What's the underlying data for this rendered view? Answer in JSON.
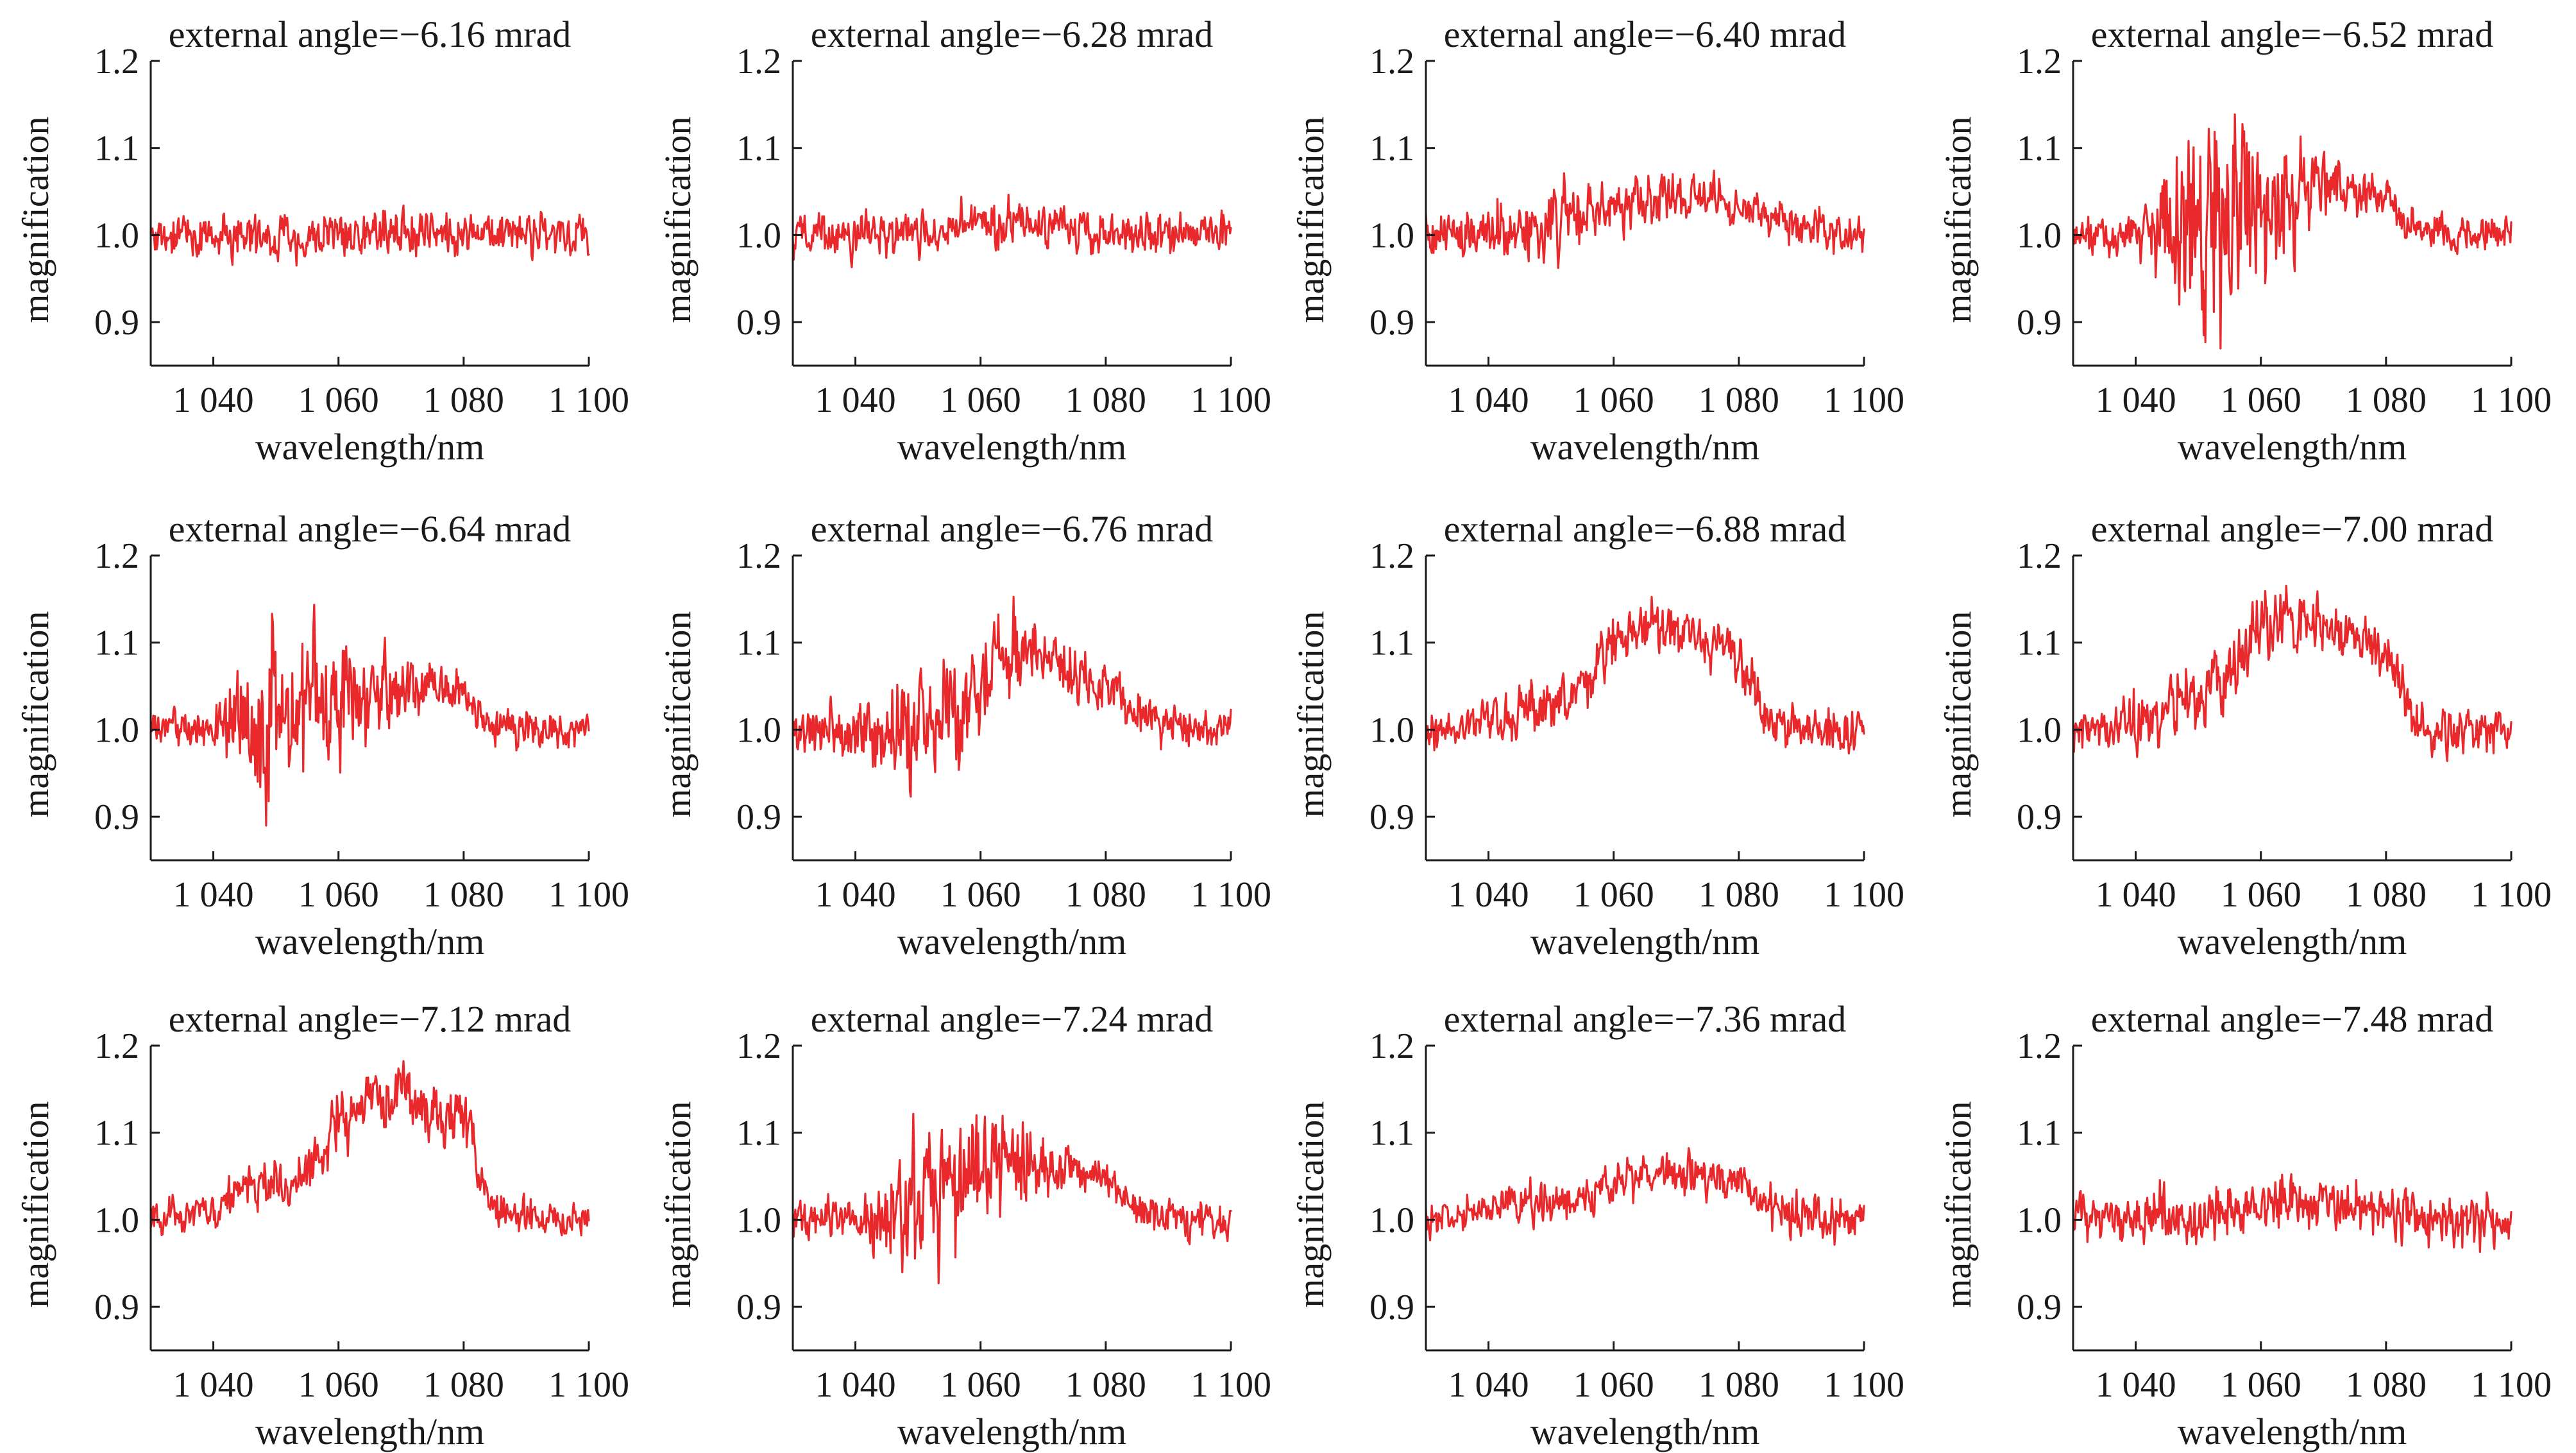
{
  "figure": {
    "line_color": "#e8282b",
    "axis_color": "#1a1a1a"
  },
  "chart_data": [
    {
      "type": "line",
      "title": "external angle=−6.16 mrad",
      "xlabel": "wavelength/nm",
      "ylabel": "magnification",
      "xlim": [
        1030,
        1100
      ],
      "ylim": [
        0.85,
        1.2
      ],
      "xticks": [
        1040,
        1060,
        1080,
        1100
      ],
      "xtick_labels": [
        "1 040",
        "1 060",
        "1 080",
        "1 100"
      ],
      "yticks": [
        0.9,
        1.0,
        1.1,
        1.2
      ],
      "ytick_labels": [
        "0.9",
        "1.0",
        "1.1",
        "1.2"
      ],
      "grid": false,
      "series": [
        {
          "x": [
            1030,
            1035,
            1040,
            1045,
            1050,
            1055,
            1060,
            1065,
            1070,
            1075,
            1080,
            1085,
            1090,
            1095,
            1100
          ],
          "y": [
            1.0,
            1.0,
            1.0,
            1.0,
            1.0,
            1.0,
            1.0,
            1.0,
            1.0,
            1.0,
            1.0,
            1.0,
            1.0,
            1.0,
            1.0
          ],
          "noise": [
            0.014,
            0.014,
            0.014,
            0.014,
            0.014,
            0.014,
            0.014,
            0.014,
            0.014,
            0.014,
            0.014,
            0.014,
            0.014,
            0.014,
            0.014
          ]
        }
      ]
    },
    {
      "type": "line",
      "title": "external angle=−6.28 mrad",
      "xlabel": "wavelength/nm",
      "ylabel": "magnification",
      "xlim": [
        1030,
        1100
      ],
      "ylim": [
        0.85,
        1.2
      ],
      "xticks": [
        1040,
        1060,
        1080,
        1100
      ],
      "xtick_labels": [
        "1 040",
        "1 060",
        "1 080",
        "1 100"
      ],
      "yticks": [
        0.9,
        1.0,
        1.1,
        1.2
      ],
      "ytick_labels": [
        "0.9",
        "1.0",
        "1.1",
        "1.2"
      ],
      "grid": false,
      "series": [
        {
          "x": [
            1030,
            1035,
            1040,
            1045,
            1050,
            1055,
            1060,
            1065,
            1070,
            1075,
            1080,
            1085,
            1090,
            1095,
            1100
          ],
          "y": [
            1.0,
            1.0,
            1.0,
            1.0,
            1.0,
            1.005,
            1.01,
            1.01,
            1.01,
            1.005,
            1.005,
            1.0,
            1.0,
            1.0,
            1.0
          ],
          "noise": [
            0.014,
            0.014,
            0.014,
            0.015,
            0.015,
            0.015,
            0.016,
            0.015,
            0.015,
            0.015,
            0.014,
            0.014,
            0.014,
            0.014,
            0.014
          ]
        }
      ]
    },
    {
      "type": "line",
      "title": "external angle=−6.40 mrad",
      "xlabel": "wavelength/nm",
      "ylabel": "magnification",
      "xlim": [
        1030,
        1100
      ],
      "ylim": [
        0.85,
        1.2
      ],
      "xticks": [
        1040,
        1060,
        1080,
        1100
      ],
      "xtick_labels": [
        "1 040",
        "1 060",
        "1 080",
        "1 100"
      ],
      "yticks": [
        0.9,
        1.0,
        1.1,
        1.2
      ],
      "ytick_labels": [
        "0.9",
        "1.0",
        "1.1",
        "1.2"
      ],
      "grid": false,
      "series": [
        {
          "x": [
            1030,
            1035,
            1040,
            1045,
            1050,
            1055,
            1060,
            1065,
            1070,
            1075,
            1080,
            1085,
            1090,
            1095,
            1100
          ],
          "y": [
            1.0,
            1.0,
            1.0,
            1.005,
            1.015,
            1.025,
            1.035,
            1.045,
            1.045,
            1.04,
            1.03,
            1.02,
            1.01,
            1.0,
            1.0
          ],
          "noise": [
            0.015,
            0.015,
            0.02,
            0.022,
            0.022,
            0.02,
            0.018,
            0.016,
            0.015,
            0.015,
            0.014,
            0.014,
            0.013,
            0.013,
            0.013
          ]
        }
      ]
    },
    {
      "type": "line",
      "title": "external angle=−6.52 mrad",
      "xlabel": "wavelength/nm",
      "ylabel": "magnification",
      "xlim": [
        1030,
        1100
      ],
      "ylim": [
        0.85,
        1.2
      ],
      "xticks": [
        1040,
        1060,
        1080,
        1100
      ],
      "xtick_labels": [
        "1 040",
        "1 060",
        "1 080",
        "1 100"
      ],
      "yticks": [
        0.9,
        1.0,
        1.1,
        1.2
      ],
      "ytick_labels": [
        "0.9",
        "1.0",
        "1.1",
        "1.2"
      ],
      "grid": false,
      "series": [
        {
          "x": [
            1030,
            1035,
            1040,
            1045,
            1050,
            1055,
            1060,
            1065,
            1070,
            1075,
            1080,
            1085,
            1090,
            1095,
            1100
          ],
          "y": [
            1.0,
            1.0,
            1.0,
            1.005,
            1.02,
            1.03,
            1.04,
            1.05,
            1.055,
            1.05,
            1.04,
            1.005,
            1.0,
            1.0,
            1.0
          ],
          "noise": [
            0.012,
            0.012,
            0.012,
            0.05,
            0.07,
            0.06,
            0.05,
            0.04,
            0.025,
            0.015,
            0.013,
            0.012,
            0.012,
            0.012,
            0.012
          ]
        }
      ]
    },
    {
      "type": "line",
      "title": "external angle=−6.64 mrad",
      "xlabel": "wavelength/nm",
      "ylabel": "magnification",
      "xlim": [
        1030,
        1100
      ],
      "ylim": [
        0.85,
        1.2
      ],
      "xticks": [
        1040,
        1060,
        1080,
        1100
      ],
      "xtick_labels": [
        "1 040",
        "1 060",
        "1 080",
        "1 100"
      ],
      "yticks": [
        0.9,
        1.0,
        1.1,
        1.2
      ],
      "ytick_labels": [
        "0.9",
        "1.0",
        "1.1",
        "1.2"
      ],
      "grid": false,
      "series": [
        {
          "x": [
            1030,
            1035,
            1040,
            1045,
            1050,
            1055,
            1060,
            1065,
            1070,
            1075,
            1080,
            1085,
            1090,
            1095,
            1100
          ],
          "y": [
            1.0,
            1.0,
            1.0,
            1.01,
            1.02,
            1.02,
            1.04,
            1.05,
            1.05,
            1.045,
            1.04,
            1.005,
            1.0,
            1.0,
            1.0
          ],
          "noise": [
            0.012,
            0.012,
            0.012,
            0.05,
            0.06,
            0.06,
            0.045,
            0.03,
            0.02,
            0.015,
            0.014,
            0.012,
            0.012,
            0.012,
            0.012
          ]
        }
      ]
    },
    {
      "type": "line",
      "title": "external angle=−6.76 mrad",
      "xlabel": "wavelength/nm",
      "ylabel": "magnification",
      "xlim": [
        1030,
        1100
      ],
      "ylim": [
        0.85,
        1.2
      ],
      "xticks": [
        1040,
        1060,
        1080,
        1100
      ],
      "xtick_labels": [
        "1 040",
        "1 060",
        "1 080",
        "1 100"
      ],
      "yticks": [
        0.9,
        1.0,
        1.1,
        1.2
      ],
      "ytick_labels": [
        "0.9",
        "1.0",
        "1.1",
        "1.2"
      ],
      "grid": false,
      "series": [
        {
          "x": [
            1030,
            1035,
            1040,
            1045,
            1050,
            1055,
            1060,
            1065,
            1070,
            1075,
            1080,
            1085,
            1090,
            1095,
            1100
          ],
          "y": [
            1.0,
            1.0,
            1.0,
            1.0,
            1.005,
            1.02,
            1.05,
            1.1,
            1.09,
            1.07,
            1.05,
            1.02,
            1.01,
            1.0,
            1.0
          ],
          "noise": [
            0.015,
            0.015,
            0.02,
            0.03,
            0.035,
            0.035,
            0.035,
            0.03,
            0.02,
            0.018,
            0.016,
            0.015,
            0.014,
            0.014,
            0.014
          ]
        }
      ]
    },
    {
      "type": "line",
      "title": "external angle=−6.88 mrad",
      "xlabel": "wavelength/nm",
      "ylabel": "magnification",
      "xlim": [
        1030,
        1100
      ],
      "ylim": [
        0.85,
        1.2
      ],
      "xticks": [
        1040,
        1060,
        1080,
        1100
      ],
      "xtick_labels": [
        "1 040",
        "1 060",
        "1 080",
        "1 100"
      ],
      "yticks": [
        0.9,
        1.0,
        1.1,
        1.2
      ],
      "ytick_labels": [
        "0.9",
        "1.0",
        "1.1",
        "1.2"
      ],
      "grid": false,
      "series": [
        {
          "x": [
            1030,
            1035,
            1040,
            1045,
            1050,
            1055,
            1060,
            1065,
            1070,
            1075,
            1080,
            1085,
            1090,
            1095,
            1100
          ],
          "y": [
            1.0,
            1.005,
            1.01,
            1.02,
            1.03,
            1.05,
            1.09,
            1.11,
            1.11,
            1.1,
            1.08,
            1.01,
            1.0,
            1.0,
            1.0
          ],
          "noise": [
            0.013,
            0.013,
            0.014,
            0.018,
            0.02,
            0.02,
            0.02,
            0.02,
            0.018,
            0.016,
            0.016,
            0.015,
            0.015,
            0.015,
            0.015
          ]
        }
      ]
    },
    {
      "type": "line",
      "title": "external angle=−7.00 mrad",
      "xlabel": "wavelength/nm",
      "ylabel": "magnification",
      "xlim": [
        1030,
        1100
      ],
      "ylim": [
        0.85,
        1.2
      ],
      "xticks": [
        1040,
        1060,
        1080,
        1100
      ],
      "xtick_labels": [
        "1 040",
        "1 060",
        "1 080",
        "1 100"
      ],
      "yticks": [
        0.9,
        1.0,
        1.1,
        1.2
      ],
      "ytick_labels": [
        "0.9",
        "1.0",
        "1.1",
        "1.2"
      ],
      "grid": false,
      "series": [
        {
          "x": [
            1030,
            1035,
            1040,
            1045,
            1050,
            1055,
            1060,
            1065,
            1070,
            1075,
            1080,
            1085,
            1090,
            1095,
            1100
          ],
          "y": [
            1.0,
            1.005,
            1.01,
            1.02,
            1.04,
            1.07,
            1.11,
            1.13,
            1.12,
            1.11,
            1.09,
            1.01,
            1.0,
            1.0,
            1.0
          ],
          "noise": [
            0.014,
            0.014,
            0.018,
            0.022,
            0.025,
            0.024,
            0.022,
            0.02,
            0.018,
            0.016,
            0.016,
            0.015,
            0.015,
            0.015,
            0.015
          ]
        }
      ]
    },
    {
      "type": "line",
      "title": "external angle=−7.12 mrad",
      "xlabel": "wavelength/nm",
      "ylabel": "magnification",
      "xlim": [
        1030,
        1100
      ],
      "ylim": [
        0.85,
        1.2
      ],
      "xticks": [
        1040,
        1060,
        1080,
        1100
      ],
      "xtick_labels": [
        "1 040",
        "1 060",
        "1 080",
        "1 100"
      ],
      "yticks": [
        0.9,
        1.0,
        1.1,
        1.2
      ],
      "ytick_labels": [
        "0.9",
        "1.0",
        "1.1",
        "1.2"
      ],
      "grid": false,
      "series": [
        {
          "x": [
            1030,
            1035,
            1040,
            1045,
            1050,
            1055,
            1060,
            1065,
            1070,
            1075,
            1080,
            1085,
            1090,
            1095,
            1100
          ],
          "y": [
            1.0,
            1.005,
            1.01,
            1.04,
            1.04,
            1.05,
            1.11,
            1.14,
            1.14,
            1.13,
            1.11,
            1.01,
            1.0,
            1.0,
            1.0
          ],
          "noise": [
            0.012,
            0.012,
            0.012,
            0.014,
            0.016,
            0.02,
            0.022,
            0.022,
            0.02,
            0.02,
            0.018,
            0.013,
            0.012,
            0.012,
            0.012
          ]
        }
      ]
    },
    {
      "type": "line",
      "title": "external angle=−7.24 mrad",
      "xlabel": "wavelength/nm",
      "ylabel": "magnification",
      "xlim": [
        1030,
        1100
      ],
      "ylim": [
        0.85,
        1.2
      ],
      "xticks": [
        1040,
        1060,
        1080,
        1100
      ],
      "xtick_labels": [
        "1 040",
        "1 060",
        "1 080",
        "1 100"
      ],
      "yticks": [
        0.9,
        1.0,
        1.1,
        1.2
      ],
      "ytick_labels": [
        "0.9",
        "1.0",
        "1.1",
        "1.2"
      ],
      "grid": false,
      "series": [
        {
          "x": [
            1030,
            1035,
            1040,
            1045,
            1050,
            1055,
            1060,
            1065,
            1070,
            1075,
            1080,
            1085,
            1090,
            1095,
            1100
          ],
          "y": [
            1.0,
            1.0,
            1.0,
            1.0,
            1.02,
            1.04,
            1.06,
            1.07,
            1.06,
            1.055,
            1.05,
            1.01,
            1.0,
            1.0,
            1.0
          ],
          "noise": [
            0.012,
            0.012,
            0.012,
            0.03,
            0.05,
            0.045,
            0.04,
            0.03,
            0.02,
            0.015,
            0.014,
            0.012,
            0.012,
            0.012,
            0.012
          ]
        }
      ]
    },
    {
      "type": "line",
      "title": "external angle=−7.36 mrad",
      "xlabel": "wavelength/nm",
      "ylabel": "magnification",
      "xlim": [
        1030,
        1100
      ],
      "ylim": [
        0.85,
        1.2
      ],
      "xticks": [
        1040,
        1060,
        1080,
        1100
      ],
      "xtick_labels": [
        "1 040",
        "1 060",
        "1 080",
        "1 100"
      ],
      "yticks": [
        0.9,
        1.0,
        1.1,
        1.2
      ],
      "ytick_labels": [
        "0.9",
        "1.0",
        "1.1",
        "1.2"
      ],
      "grid": false,
      "series": [
        {
          "x": [
            1030,
            1035,
            1040,
            1045,
            1050,
            1055,
            1060,
            1065,
            1070,
            1075,
            1080,
            1085,
            1090,
            1095,
            1100
          ],
          "y": [
            1.0,
            1.005,
            1.01,
            1.015,
            1.02,
            1.025,
            1.045,
            1.05,
            1.05,
            1.045,
            1.04,
            1.015,
            1.005,
            1.0,
            1.0
          ],
          "noise": [
            0.012,
            0.012,
            0.012,
            0.013,
            0.013,
            0.014,
            0.015,
            0.015,
            0.014,
            0.014,
            0.014,
            0.015,
            0.015,
            0.016,
            0.016
          ]
        }
      ]
    },
    {
      "type": "line",
      "title": "external angle=−7.48 mrad",
      "xlabel": "wavelength/nm",
      "ylabel": "magnification",
      "xlim": [
        1030,
        1100
      ],
      "ylim": [
        0.85,
        1.2
      ],
      "xticks": [
        1040,
        1060,
        1080,
        1100
      ],
      "xtick_labels": [
        "1 040",
        "1 060",
        "1 080",
        "1 100"
      ],
      "yticks": [
        0.9,
        1.0,
        1.1,
        1.2
      ],
      "ytick_labels": [
        "0.9",
        "1.0",
        "1.1",
        "1.2"
      ],
      "grid": false,
      "series": [
        {
          "x": [
            1030,
            1035,
            1040,
            1045,
            1050,
            1055,
            1060,
            1065,
            1070,
            1075,
            1080,
            1085,
            1090,
            1095,
            1100
          ],
          "y": [
            1.0,
            1.0,
            1.0,
            1.005,
            1.005,
            1.01,
            1.015,
            1.02,
            1.02,
            1.015,
            1.01,
            1.005,
            1.0,
            1.0,
            1.0
          ],
          "noise": [
            0.016,
            0.016,
            0.017,
            0.018,
            0.018,
            0.018,
            0.018,
            0.018,
            0.018,
            0.018,
            0.018,
            0.018,
            0.017,
            0.017,
            0.016
          ]
        }
      ]
    }
  ]
}
